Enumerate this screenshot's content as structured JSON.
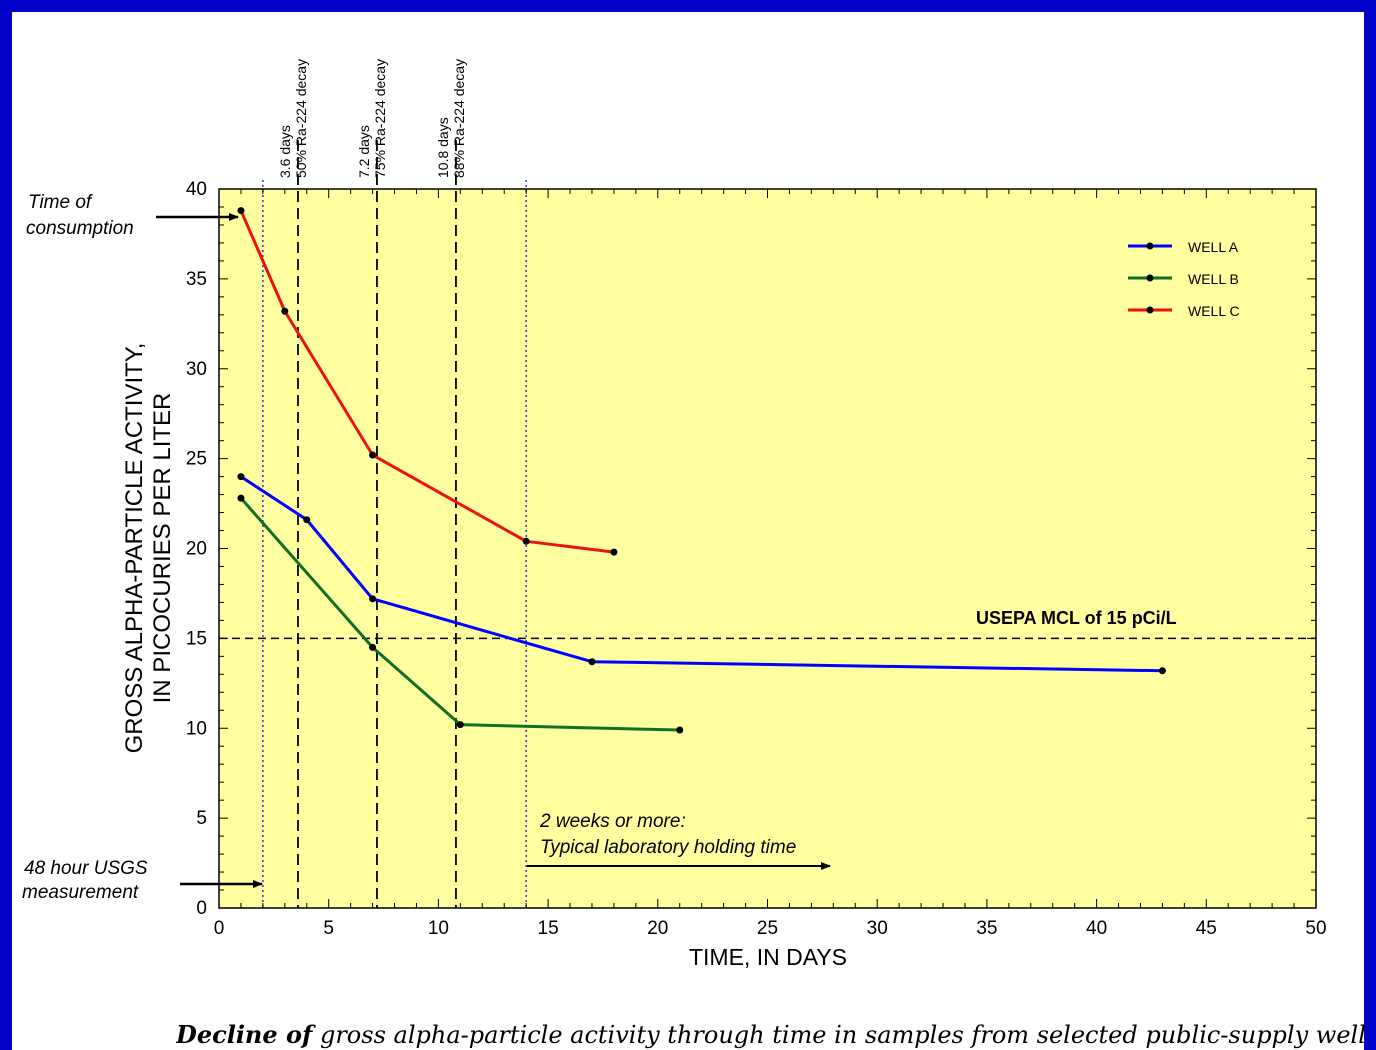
{
  "caption": {
    "lead": "Decline of",
    "rest": " gross alpha-particle activity through time in samples from selected public-supply wells,"
  },
  "chart_data": {
    "type": "line",
    "xlabel": "TIME, IN DAYS",
    "ylabel_line1": "GROSS ALPHA-PARTICLE ACTIVITY,",
    "ylabel_line2": "IN PICOCURIES PER LITER",
    "xlim": [
      0,
      50
    ],
    "ylim": [
      0,
      40
    ],
    "xticks": [
      0,
      5,
      10,
      15,
      20,
      25,
      30,
      35,
      40,
      45,
      50
    ],
    "yticks": [
      0,
      5,
      10,
      15,
      20,
      25,
      30,
      35,
      40
    ],
    "plot_background": "#ffff9f",
    "legend_position": "top-right",
    "series": [
      {
        "name": "WELL A",
        "color": "#0000ff",
        "x": [
          1,
          4,
          7,
          17,
          43
        ],
        "y": [
          24,
          21.6,
          17.2,
          13.7,
          13.2
        ]
      },
      {
        "name": "WELL B",
        "color": "#116e27",
        "x": [
          1,
          7,
          11,
          21
        ],
        "y": [
          22.8,
          14.5,
          10.2,
          9.9
        ]
      },
      {
        "name": "WELL C",
        "color": "#ee1111",
        "x": [
          1,
          3,
          7,
          14,
          18
        ],
        "y": [
          38.8,
          33.2,
          25.2,
          20.4,
          19.8
        ]
      }
    ],
    "reference_line": {
      "y": 15,
      "label": "USEPA MCL of 15 pCi/L",
      "label_color": "#e8141c"
    },
    "decay_lines": [
      {
        "x": 3.6,
        "line1": "3.6 days",
        "line2": "50% Ra-224 decay"
      },
      {
        "x": 7.2,
        "line1": "7.2 days",
        "line2": "75% Ra-224 decay"
      },
      {
        "x": 10.8,
        "line1": "10.8 days",
        "line2": "88% Ra-224 decay"
      }
    ],
    "blue_dotted_lines": [
      2,
      14
    ],
    "annotations": {
      "consumption_line1": "Time of",
      "consumption_line2": "consumption",
      "usgs_line1": "48 hour USGS",
      "usgs_line2": "measurement",
      "holding_line1": "2 weeks or more:",
      "holding_line2": "Typical laboratory holding time"
    }
  }
}
